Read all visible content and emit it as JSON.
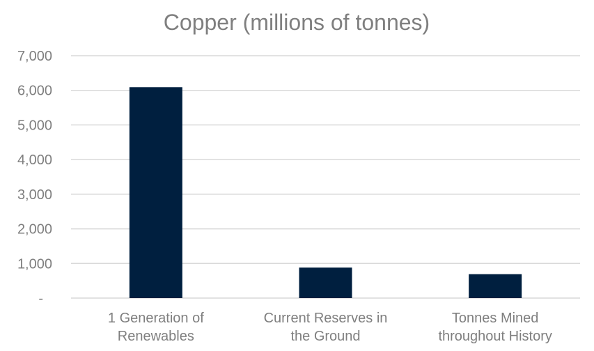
{
  "chart_data": {
    "type": "bar",
    "title": "Copper (millions of tonnes)",
    "categories": [
      [
        "1 Generation of",
        "Renewables"
      ],
      [
        "Current Reserves in",
        "the Ground"
      ],
      [
        "Tonnes Mined",
        "throughout History"
      ]
    ],
    "values": [
      6090,
      880,
      690
    ],
    "ylim": [
      0,
      7000
    ],
    "yticks": [
      0,
      1000,
      2000,
      3000,
      4000,
      5000,
      6000,
      7000
    ],
    "ytick_labels": [
      "-",
      "1,000",
      "2,000",
      "3,000",
      "4,000",
      "5,000",
      "6,000",
      "7,000"
    ],
    "grid": true,
    "legend": "none",
    "bar_color": "#001f3f"
  }
}
